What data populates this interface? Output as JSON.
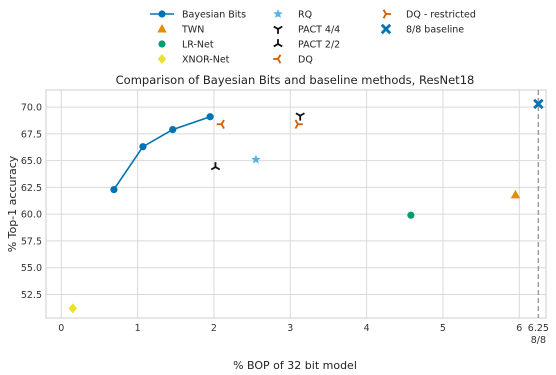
{
  "chart_data": {
    "type": "scatter",
    "title": "Comparison of Bayesian Bits and baseline methods, ResNet18",
    "xlabel": "% BOP of 32 bit model",
    "ylabel": "% Top-1 accuracy",
    "xlim": [
      -0.2,
      6.35
    ],
    "ylim": [
      50.3,
      71.6
    ],
    "x_ticks": [
      0,
      1,
      2,
      3,
      4,
      5,
      6,
      6.25
    ],
    "x_tick_labels": [
      "0",
      "1",
      "2",
      "3",
      "4",
      "5",
      "6",
      "6.25"
    ],
    "x_secondary_label": "8/8",
    "y_ticks": [
      52.5,
      55.0,
      57.5,
      60.0,
      62.5,
      65.0,
      67.5,
      70.0
    ],
    "y_tick_labels": [
      "52.5",
      "55.0",
      "57.5",
      "60.0",
      "62.5",
      "65.0",
      "67.5",
      "70.0"
    ],
    "grid": true,
    "legend_placement": "top-center, outside plot",
    "vline_x": 6.25,
    "series": [
      {
        "name": "Bayesian Bits",
        "marker": "circle-line",
        "color": "#0173b2",
        "points": [
          [
            0.69,
            62.3
          ],
          [
            1.07,
            66.3
          ],
          [
            1.46,
            67.9
          ],
          [
            1.95,
            69.1
          ]
        ]
      },
      {
        "name": "TWN",
        "marker": "triangle",
        "color": "#de8f05",
        "points": [
          [
            5.95,
            61.8
          ]
        ]
      },
      {
        "name": "LR-Net",
        "marker": "circle",
        "color": "#029e73",
        "points": [
          [
            4.58,
            59.9
          ]
        ]
      },
      {
        "name": "XNOR-Net",
        "marker": "diamond",
        "color": "#ece133",
        "points": [
          [
            0.15,
            51.2
          ]
        ]
      },
      {
        "name": "RQ",
        "marker": "star",
        "color": "#56b4e9",
        "points": [
          [
            2.55,
            65.1
          ]
        ]
      },
      {
        "name": "PACT 4/4",
        "marker": "tri-down",
        "color": "#111111",
        "points": [
          [
            3.13,
            69.2
          ]
        ]
      },
      {
        "name": "PACT 2/2",
        "marker": "tri-up",
        "color": "#111111",
        "points": [
          [
            2.02,
            64.4
          ]
        ]
      },
      {
        "name": "DQ",
        "marker": "tri-left",
        "color": "#d55e00",
        "points": [
          [
            2.1,
            68.4
          ]
        ]
      },
      {
        "name": "DQ - restricted",
        "marker": "tri-right",
        "color": "#d55e00",
        "points": [
          [
            3.1,
            68.4
          ]
        ]
      },
      {
        "name": "8/8 baseline",
        "marker": "x-filled",
        "color": "#0173b2",
        "points": [
          [
            6.25,
            70.3
          ]
        ]
      }
    ]
  }
}
